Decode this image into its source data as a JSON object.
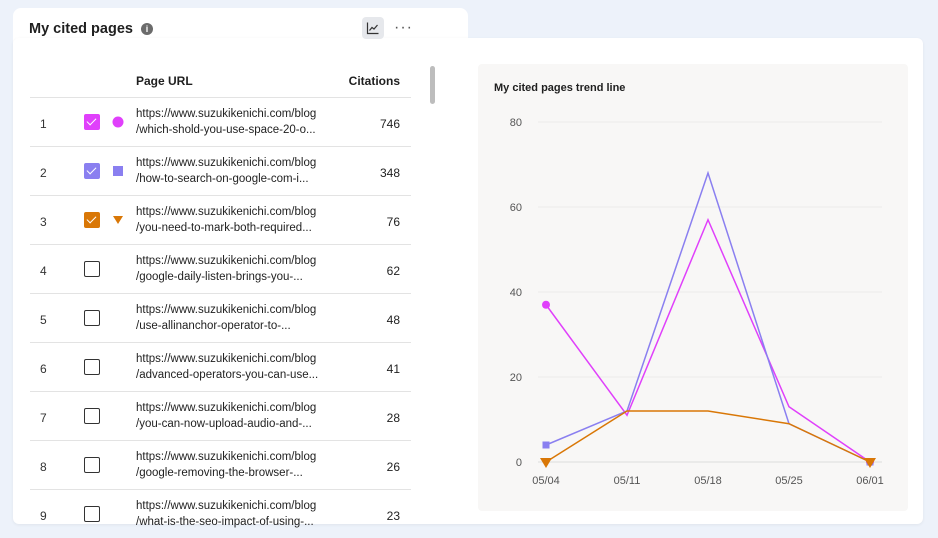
{
  "header": {
    "title": "My cited pages",
    "info_icon": "info-icon",
    "chart_toggle_icon": "trend-chart-icon",
    "more_icon": "more-horizontal-icon"
  },
  "table": {
    "col_url": "Page URL",
    "col_citations": "Citations",
    "rows": [
      {
        "num": "1",
        "checked": true,
        "color": "#e040fb",
        "marker": "circle",
        "url1": "https://www.suzukikenichi.com/blog",
        "url2": "/which-shold-you-use-space-20-o...",
        "citations": "746"
      },
      {
        "num": "2",
        "checked": true,
        "color": "#8a7ff0",
        "marker": "square",
        "url1": "https://www.suzukikenichi.com/blog",
        "url2": "/how-to-search-on-google-com-i...",
        "citations": "348"
      },
      {
        "num": "3",
        "checked": true,
        "color": "#d97706",
        "marker": "triangle",
        "url1": "https://www.suzukikenichi.com/blog",
        "url2": "/you-need-to-mark-both-required...",
        "citations": "76"
      },
      {
        "num": "4",
        "checked": false,
        "url1": "https://www.suzukikenichi.com/blog",
        "url2": "/google-daily-listen-brings-you-...",
        "citations": "62"
      },
      {
        "num": "5",
        "checked": false,
        "url1": "https://www.suzukikenichi.com/blog",
        "url2": "/use-allinanchor-operator-to-...",
        "citations": "48"
      },
      {
        "num": "6",
        "checked": false,
        "url1": "https://www.suzukikenichi.com/blog",
        "url2": "/advanced-operators-you-can-use...",
        "citations": "41"
      },
      {
        "num": "7",
        "checked": false,
        "url1": "https://www.suzukikenichi.com/blog",
        "url2": "/you-can-now-upload-audio-and-...",
        "citations": "28"
      },
      {
        "num": "8",
        "checked": false,
        "url1": "https://www.suzukikenichi.com/blog",
        "url2": "/google-removing-the-browser-...",
        "citations": "26"
      },
      {
        "num": "9",
        "checked": false,
        "url1": "https://www.suzukikenichi.com/blog",
        "url2": "/what-is-the-seo-impact-of-using-...",
        "citations": "23"
      }
    ]
  },
  "chart_data": {
    "type": "line",
    "title": "My cited pages trend line",
    "categories": [
      "05/04",
      "05/11",
      "05/18",
      "05/25",
      "06/01"
    ],
    "ylim": [
      0,
      80
    ],
    "yticks": [
      0,
      20,
      40,
      60,
      80
    ],
    "grid": true,
    "series": [
      {
        "color": "#e040fb",
        "marker": "circle",
        "values": [
          37,
          11,
          57,
          13,
          0
        ]
      },
      {
        "color": "#8a7ff0",
        "marker": "square",
        "values": [
          4,
          12,
          68,
          9,
          0
        ]
      },
      {
        "color": "#d97706",
        "marker": "triangle",
        "values": [
          0,
          12,
          12,
          9,
          0
        ]
      }
    ]
  }
}
